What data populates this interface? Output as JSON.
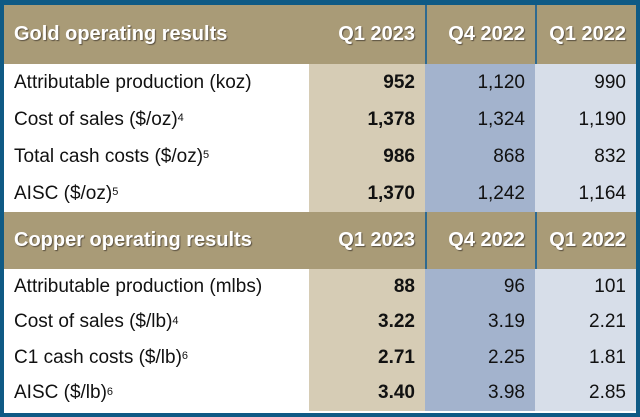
{
  "sections": [
    {
      "title": "Gold operating results",
      "columns": [
        "Q1 2023",
        "Q4 2022",
        "Q1 2022"
      ],
      "rows": [
        {
          "label": "Attributable production (koz)",
          "note": "",
          "values": [
            "952",
            "1,120",
            "990"
          ]
        },
        {
          "label": "Cost of sales ($/oz)",
          "note": "4",
          "values": [
            "1,378",
            "1,324",
            "1,190"
          ]
        },
        {
          "label": "Total cash costs ($/oz)",
          "note": "5",
          "values": [
            "986",
            "868",
            "832"
          ]
        },
        {
          "label": "AISC ($/oz)",
          "note": "5",
          "values": [
            "1,370",
            "1,242",
            "1,164"
          ]
        }
      ]
    },
    {
      "title": "Copper operating results",
      "columns": [
        "Q1 2023",
        "Q4 2022",
        "Q1 2022"
      ],
      "rows": [
        {
          "label": "Attributable production (mlbs)",
          "note": "",
          "values": [
            "88",
            "96",
            "101"
          ]
        },
        {
          "label": "Cost of sales ($/lb)",
          "note": "4",
          "values": [
            "3.22",
            "3.19",
            "2.21"
          ]
        },
        {
          "label": "C1 cash costs ($/lb)",
          "note": "6",
          "values": [
            "2.71",
            "2.25",
            "1.81"
          ]
        },
        {
          "label": "AISC ($/lb)",
          "note": "6",
          "values": [
            "3.40",
            "3.98",
            "2.85"
          ]
        }
      ]
    }
  ],
  "colors": {
    "header": "#a99b77",
    "border": "#0f5a85",
    "q1_2023": "#d6ccb5",
    "q4_2022": "#a3b3cd",
    "q1_2022": "#d7dee9"
  }
}
